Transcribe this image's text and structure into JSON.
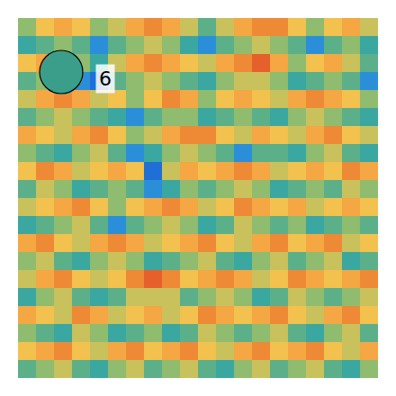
{
  "chart_data": {
    "type": "heatmap",
    "z": [
      [
        4,
        6,
        7,
        6,
        4,
        5,
        7,
        8,
        7,
        5,
        3,
        5,
        7,
        8,
        8,
        6,
        4,
        6,
        7,
        5
      ],
      [
        2,
        3,
        4,
        3,
        1,
        3,
        4,
        5,
        4,
        2,
        1,
        3,
        4,
        5,
        4,
        3,
        1,
        3,
        4,
        2
      ],
      [
        6,
        7,
        6,
        4,
        2,
        5,
        7,
        8,
        7,
        6,
        5,
        7,
        8,
        9,
        7,
        4,
        6,
        7,
        5,
        3
      ],
      [
        3,
        4,
        3,
        1,
        0,
        3,
        4,
        5,
        4,
        3,
        2,
        4,
        5,
        5,
        4,
        2,
        3,
        4,
        3,
        1
      ],
      [
        5,
        7,
        8,
        7,
        5,
        6,
        4,
        6,
        8,
        7,
        4,
        6,
        7,
        6,
        5,
        7,
        8,
        7,
        6,
        4
      ],
      [
        3,
        4,
        5,
        4,
        3,
        2,
        1,
        3,
        4,
        4,
        2,
        3,
        4,
        3,
        2,
        4,
        5,
        4,
        3,
        2
      ],
      [
        7,
        6,
        5,
        7,
        8,
        6,
        4,
        5,
        7,
        8,
        8,
        6,
        5,
        7,
        6,
        5,
        7,
        8,
        6,
        5
      ],
      [
        4,
        3,
        2,
        4,
        5,
        3,
        1,
        2,
        4,
        5,
        4,
        3,
        1,
        3,
        3,
        2,
        4,
        5,
        3,
        2
      ],
      [
        6,
        8,
        7,
        5,
        6,
        7,
        6,
        0,
        5,
        7,
        6,
        7,
        8,
        7,
        5,
        6,
        7,
        6,
        8,
        7
      ],
      [
        3,
        5,
        4,
        2,
        3,
        4,
        3,
        1,
        2,
        4,
        3,
        4,
        5,
        4,
        2,
        3,
        4,
        3,
        5,
        4
      ],
      [
        5,
        6,
        7,
        8,
        6,
        4,
        6,
        7,
        8,
        7,
        5,
        6,
        8,
        7,
        6,
        7,
        5,
        6,
        7,
        6
      ],
      [
        2,
        3,
        4,
        5,
        3,
        1,
        3,
        4,
        5,
        4,
        2,
        3,
        5,
        4,
        3,
        4,
        2,
        3,
        4,
        3
      ],
      [
        7,
        8,
        6,
        5,
        7,
        8,
        7,
        5,
        6,
        7,
        8,
        6,
        5,
        7,
        8,
        6,
        7,
        8,
        5,
        6
      ],
      [
        4,
        5,
        3,
        2,
        4,
        5,
        4,
        2,
        3,
        4,
        5,
        3,
        2,
        4,
        5,
        3,
        4,
        5,
        2,
        3
      ],
      [
        5,
        7,
        8,
        6,
        5,
        6,
        8,
        9,
        8,
        6,
        7,
        8,
        7,
        5,
        6,
        8,
        7,
        6,
        7,
        8
      ],
      [
        2,
        4,
        5,
        3,
        2,
        3,
        5,
        5,
        5,
        3,
        4,
        5,
        4,
        2,
        3,
        5,
        4,
        3,
        4,
        5
      ],
      [
        7,
        6,
        5,
        8,
        7,
        5,
        6,
        7,
        5,
        6,
        8,
        7,
        6,
        7,
        8,
        6,
        5,
        7,
        8,
        6
      ],
      [
        4,
        3,
        2,
        5,
        4,
        2,
        3,
        4,
        2,
        3,
        5,
        4,
        3,
        4,
        5,
        3,
        2,
        4,
        5,
        3
      ],
      [
        6,
        7,
        8,
        6,
        5,
        7,
        8,
        6,
        7,
        8,
        6,
        5,
        7,
        8,
        6,
        7,
        8,
        6,
        5,
        7
      ],
      [
        3,
        4,
        5,
        3,
        2,
        4,
        5,
        3,
        4,
        5,
        3,
        2,
        4,
        5,
        3,
        4,
        5,
        3,
        2,
        4
      ]
    ],
    "zlim": [
      0,
      9
    ],
    "colors": [
      "#1f6fd6",
      "#2a8fd8",
      "#3aa7a0",
      "#5bb08a",
      "#8fbc6f",
      "#c9c15c",
      "#f2c14e",
      "#f4a742",
      "#ee8a35",
      "#e5602a"
    ],
    "xlim": [
      -0.5,
      19.5
    ],
    "ylim": [
      19.5,
      -0.5
    ],
    "tick_labels": false,
    "grid": false,
    "markers": [
      {
        "x": 1.9,
        "y": 2.5,
        "label": "6",
        "color": "#3a9e8a"
      }
    ]
  }
}
